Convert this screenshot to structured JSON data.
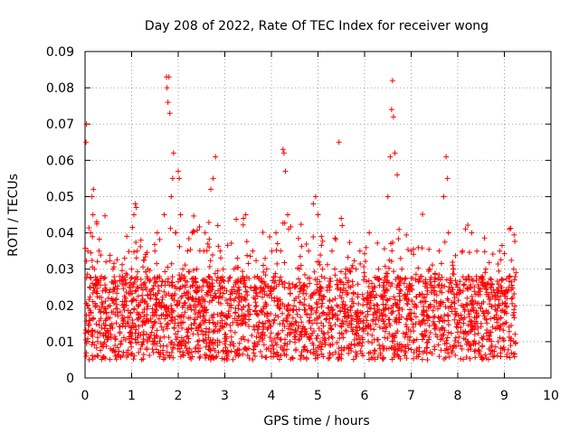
{
  "chart_data": {
    "type": "scatter",
    "title": "Day 208 of 2022, Rate Of TEC Index for receiver wong",
    "xlabel": "GPS time / hours",
    "ylabel": "ROTI / TECUs",
    "xlim": [
      0,
      10
    ],
    "ylim": [
      0,
      0.09
    ],
    "xticks": [
      0,
      1,
      2,
      3,
      4,
      5,
      6,
      7,
      8,
      9,
      10
    ],
    "xtick_labels": [
      "0",
      "1",
      "2",
      "3",
      "4",
      "5",
      "6",
      "7",
      "8",
      "9",
      "10"
    ],
    "yticks": [
      0,
      0.01,
      0.02,
      0.03,
      0.04,
      0.05,
      0.06,
      0.07,
      0.08,
      0.09
    ],
    "ytick_labels": [
      "0",
      "0.01",
      "0.02",
      "0.03",
      "0.04",
      "0.05",
      "0.06",
      "0.07",
      "0.08",
      "0.09"
    ],
    "grid": true,
    "marker": "+",
    "color": "#ff0000",
    "series": [
      {
        "name": "ROTI",
        "points": [
          [
            0.02,
            0.065
          ],
          [
            0.03,
            0.07
          ],
          [
            0.05,
            0.02
          ],
          [
            0.06,
            0.035
          ],
          [
            0.08,
            0.015
          ],
          [
            0.1,
            0.025
          ],
          [
            0.12,
            0.04
          ],
          [
            0.14,
            0.012
          ],
          [
            0.15,
            0.05
          ],
          [
            0.17,
            0.045
          ],
          [
            0.18,
            0.052
          ],
          [
            0.2,
            0.03
          ],
          [
            0.22,
            0.02
          ],
          [
            0.25,
            0.043
          ],
          [
            0.27,
            0.01
          ],
          [
            0.3,
            0.035
          ],
          [
            0.33,
            0.018
          ],
          [
            0.35,
            0.028
          ],
          [
            0.38,
            0.024
          ],
          [
            0.4,
            0.015
          ],
          [
            0.45,
            0.032
          ],
          [
            0.5,
            0.022
          ],
          [
            0.55,
            0.012
          ],
          [
            0.6,
            0.03
          ],
          [
            0.65,
            0.025
          ],
          [
            0.7,
            0.018
          ],
          [
            0.75,
            0.028
          ],
          [
            0.8,
            0.02
          ],
          [
            0.85,
            0.033
          ],
          [
            0.9,
            0.015
          ],
          [
            0.95,
            0.025
          ],
          [
            1.0,
            0.03
          ],
          [
            1.05,
            0.045
          ],
          [
            1.08,
            0.048
          ],
          [
            1.1,
            0.047
          ],
          [
            1.12,
            0.035
          ],
          [
            1.15,
            0.02
          ],
          [
            1.2,
            0.038
          ],
          [
            1.25,
            0.01
          ],
          [
            1.3,
            0.025
          ],
          [
            1.35,
            0.03
          ],
          [
            1.4,
            0.022
          ],
          [
            1.45,
            0.018
          ],
          [
            1.5,
            0.035
          ],
          [
            1.55,
            0.04
          ],
          [
            1.6,
            0.028
          ],
          [
            1.65,
            0.02
          ],
          [
            1.7,
            0.045
          ],
          [
            1.75,
            0.083
          ],
          [
            1.76,
            0.08
          ],
          [
            1.78,
            0.076
          ],
          [
            1.8,
            0.083
          ],
          [
            1.82,
            0.073
          ],
          [
            1.85,
            0.05
          ],
          [
            1.88,
            0.055
          ],
          [
            1.9,
            0.062
          ],
          [
            1.95,
            0.04
          ],
          [
            2.0,
            0.057
          ],
          [
            2.02,
            0.055
          ],
          [
            2.05,
            0.045
          ],
          [
            2.1,
            0.03
          ],
          [
            2.15,
            0.025
          ],
          [
            2.2,
            0.035
          ],
          [
            2.25,
            0.02
          ],
          [
            2.3,
            0.04
          ],
          [
            2.35,
            0.015
          ],
          [
            2.4,
            0.03
          ],
          [
            2.45,
            0.025
          ],
          [
            2.5,
            0.02
          ],
          [
            2.55,
            0.035
          ],
          [
            2.6,
            0.018
          ],
          [
            2.65,
            0.028
          ],
          [
            2.7,
            0.052
          ],
          [
            2.75,
            0.055
          ],
          [
            2.8,
            0.061
          ],
          [
            2.85,
            0.042
          ],
          [
            2.9,
            0.035
          ],
          [
            2.95,
            0.025
          ],
          [
            3.0,
            0.012
          ],
          [
            3.05,
            0.005
          ],
          [
            3.1,
            0.02
          ],
          [
            3.2,
            0.03
          ],
          [
            3.3,
            0.025
          ],
          [
            3.4,
            0.044
          ],
          [
            3.45,
            0.045
          ],
          [
            3.5,
            0.02
          ],
          [
            3.6,
            0.035
          ],
          [
            3.7,
            0.028
          ],
          [
            3.8,
            0.018
          ],
          [
            3.9,
            0.03
          ],
          [
            4.0,
            0.025
          ],
          [
            4.1,
            0.04
          ],
          [
            4.2,
            0.035
          ],
          [
            4.25,
            0.063
          ],
          [
            4.27,
            0.062
          ],
          [
            4.3,
            0.057
          ],
          [
            4.35,
            0.045
          ],
          [
            4.4,
            0.01
          ],
          [
            4.5,
            0.025
          ],
          [
            4.6,
            0.03
          ],
          [
            4.7,
            0.02
          ],
          [
            4.8,
            0.035
          ],
          [
            4.9,
            0.048
          ],
          [
            4.95,
            0.05
          ],
          [
            5.0,
            0.045
          ],
          [
            5.1,
            0.03
          ],
          [
            5.2,
            0.025
          ],
          [
            5.3,
            0.035
          ],
          [
            5.4,
            0.02
          ],
          [
            5.45,
            0.065
          ],
          [
            5.5,
            0.044
          ],
          [
            5.6,
            0.03
          ],
          [
            5.7,
            0.025
          ],
          [
            5.8,
            0.018
          ],
          [
            5.9,
            0.035
          ],
          [
            6.0,
            0.028
          ],
          [
            6.1,
            0.04
          ],
          [
            6.2,
            0.02
          ],
          [
            6.3,
            0.03
          ],
          [
            6.4,
            0.025
          ],
          [
            6.5,
            0.05
          ],
          [
            6.55,
            0.061
          ],
          [
            6.58,
            0.074
          ],
          [
            6.6,
            0.082
          ],
          [
            6.62,
            0.072
          ],
          [
            6.65,
            0.062
          ],
          [
            6.7,
            0.056
          ],
          [
            6.8,
            0.03
          ],
          [
            6.9,
            0.025
          ],
          [
            7.0,
            0.035
          ],
          [
            7.1,
            0.02
          ],
          [
            7.2,
            0.028
          ],
          [
            7.3,
            0.015
          ],
          [
            7.35,
            0.005
          ],
          [
            7.4,
            0.03
          ],
          [
            7.5,
            0.025
          ],
          [
            7.6,
            0.035
          ],
          [
            7.7,
            0.05
          ],
          [
            7.75,
            0.061
          ],
          [
            7.78,
            0.055
          ],
          [
            7.8,
            0.04
          ],
          [
            7.9,
            0.03
          ],
          [
            8.0,
            0.025
          ],
          [
            8.1,
            0.035
          ],
          [
            8.2,
            0.02
          ],
          [
            8.3,
            0.04
          ],
          [
            8.4,
            0.028
          ],
          [
            8.5,
            0.015
          ],
          [
            8.6,
            0.03
          ],
          [
            8.7,
            0.025
          ],
          [
            8.8,
            0.02
          ],
          [
            8.9,
            0.035
          ],
          [
            9.0,
            0.018
          ],
          [
            9.1,
            0.025
          ],
          [
            9.2,
            0.03
          ]
        ]
      }
    ]
  }
}
